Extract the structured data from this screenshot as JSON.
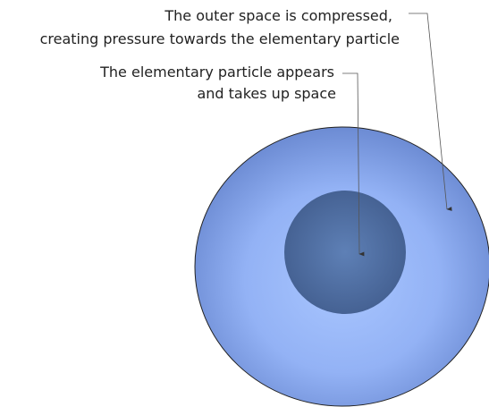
{
  "annotations": [
    {
      "lines": [
        "The outer space is compressed,",
        "creating pressure towards the elementary particle"
      ]
    },
    {
      "lines": [
        "The elementary particle appears",
        "and takes up space"
      ]
    }
  ]
}
